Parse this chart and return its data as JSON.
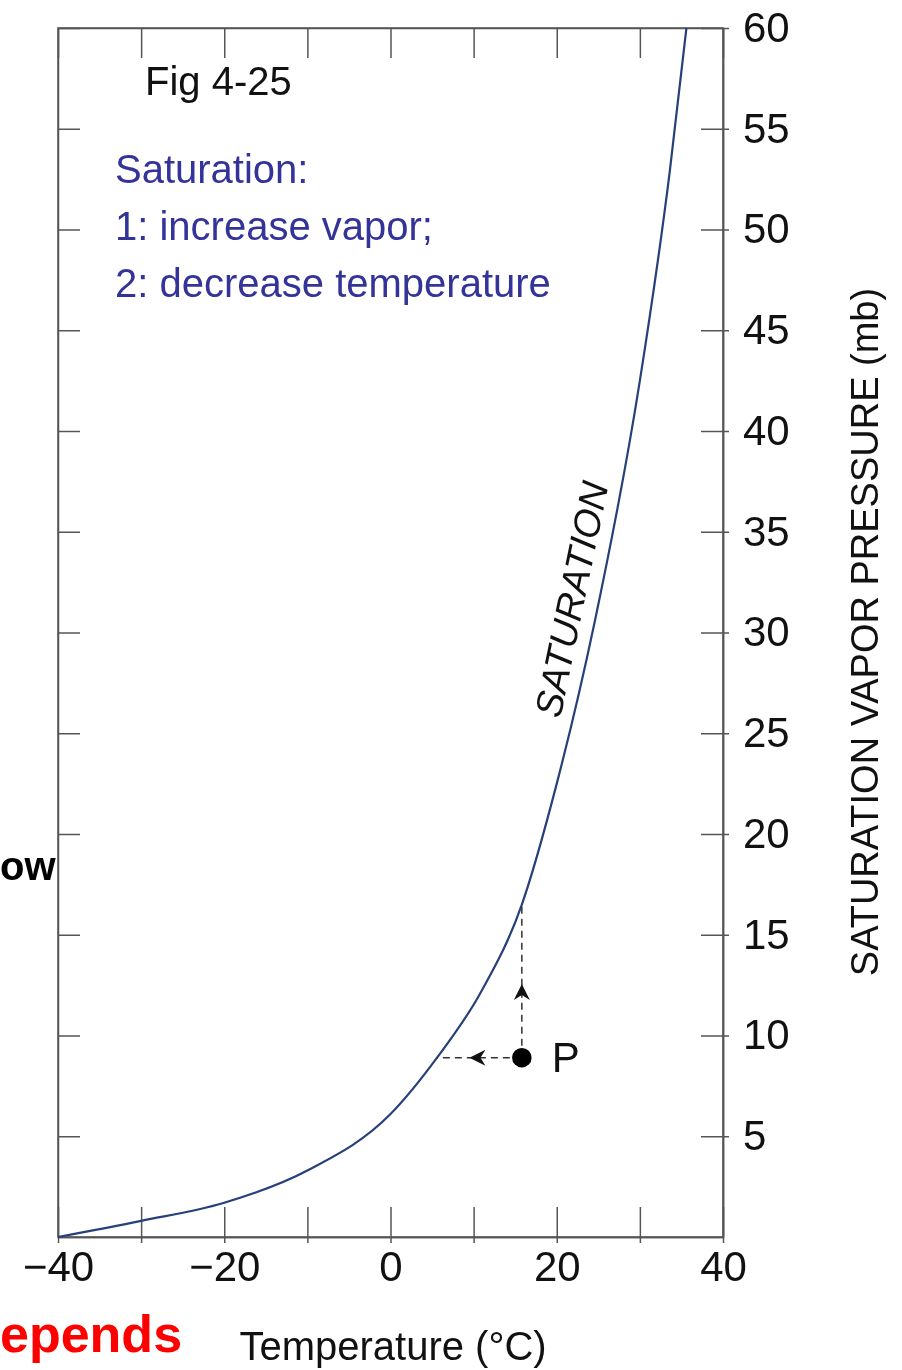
{
  "chart_data": {
    "type": "line",
    "title": "Fig 4-25",
    "xlabel": "Temperature (°C)",
    "ylabel": "SATURATION VAPOR PRESSURE (mb)",
    "annotations": [
      "Saturation:\n1: increase vapor;\n2: decrease temperature",
      "ow",
      "epends"
    ],
    "series": [
      {
        "name": "SATURATION",
        "color": "#27407a",
        "line_style": "solid",
        "x": [
          -40,
          -30,
          -20,
          -10,
          0,
          5.6,
          10.8,
          15.8,
          20,
          24.6,
          30,
          33.6,
          35.6
        ],
        "values": [
          0,
          0.8,
          1.7,
          3.3,
          6.1,
          8.9,
          12.1,
          16.5,
          22.5,
          30.6,
          42.5,
          52.9,
          60
        ]
      },
      {
        "name": "P",
        "type": "scatter",
        "color": "#000000",
        "marker": "circle",
        "x": [
          15.8
        ],
        "values": [
          8.9
        ]
      }
    ],
    "xlim": [
      -40,
      40
    ],
    "ylim": [
      0,
      60
    ],
    "xticks": [
      {
        "value": -40,
        "label": "−40"
      },
      {
        "value": -30,
        "label": null
      },
      {
        "value": -20,
        "label": "−20"
      },
      {
        "value": -10,
        "label": null
      },
      0,
      {
        "value": 10,
        "label": null
      },
      20,
      {
        "value": 30,
        "label": null
      },
      40
    ],
    "yticks": [
      5,
      10,
      15,
      20,
      25,
      30,
      35,
      40,
      45,
      50,
      55,
      60
    ],
    "grid": false,
    "legend": false
  }
}
